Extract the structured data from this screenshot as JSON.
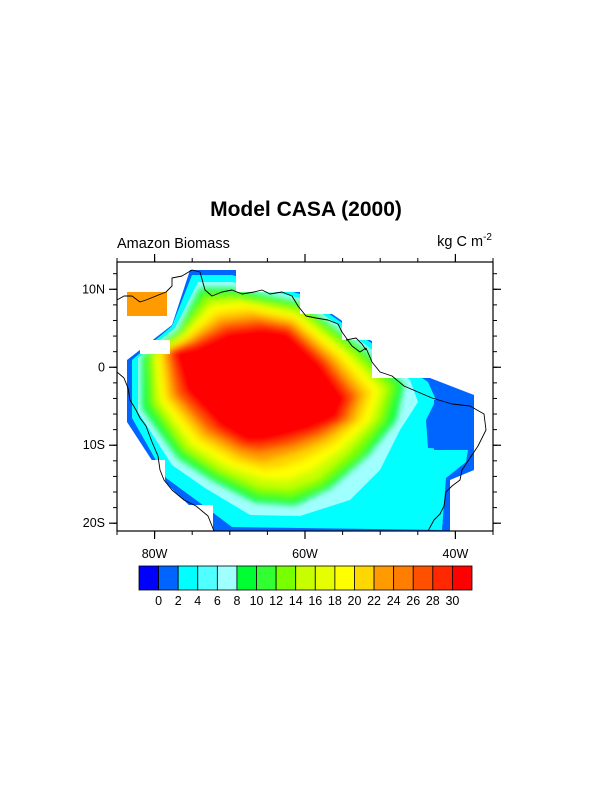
{
  "title": "Model CASA (2000)",
  "left_string": "Amazon Biomass",
  "units": {
    "base": "kg C m",
    "exponent": "-2"
  },
  "map": {
    "projection": "cylindrical-equidistant",
    "lon_range": [
      -85,
      -35
    ],
    "lat_range": [
      -21,
      13.5
    ],
    "lat_ticks": [
      {
        "value": 10,
        "label": "10N"
      },
      {
        "value": 0,
        "label": "0"
      },
      {
        "value": -10,
        "label": "10S"
      },
      {
        "value": -20,
        "label": "20S"
      }
    ],
    "lon_ticks": [
      {
        "value": -80,
        "label": "80W"
      },
      {
        "value": -60,
        "label": "60W"
      },
      {
        "value": -40,
        "label": "40W"
      }
    ],
    "minor_lat_step": 2,
    "minor_lon_step": 5,
    "coastline_color": "#000000"
  },
  "chart_data": {
    "type": "heatmap",
    "variable": "Amazon Biomass",
    "units": "kg C m-2",
    "levels": [
      0,
      2,
      4,
      6,
      8,
      10,
      12,
      14,
      16,
      18,
      20,
      22,
      24,
      26,
      28,
      30
    ],
    "colors": [
      "#0000ff",
      "#0064ff",
      "#00ffff",
      "#50ffff",
      "#a0ffff",
      "#00ff32",
      "#32ff32",
      "#78ff00",
      "#c8ff00",
      "#e6ff00",
      "#ffff00",
      "#ffd700",
      "#ff9b00",
      "#ff7d00",
      "#ff5000",
      "#ff2800",
      "#ff0000"
    ],
    "colorbar_labels": [
      "0",
      "2",
      "4",
      "6",
      "8",
      "10",
      "12",
      "14",
      "16",
      "18",
      "20",
      "22",
      "24",
      "26",
      "28",
      "30"
    ]
  }
}
